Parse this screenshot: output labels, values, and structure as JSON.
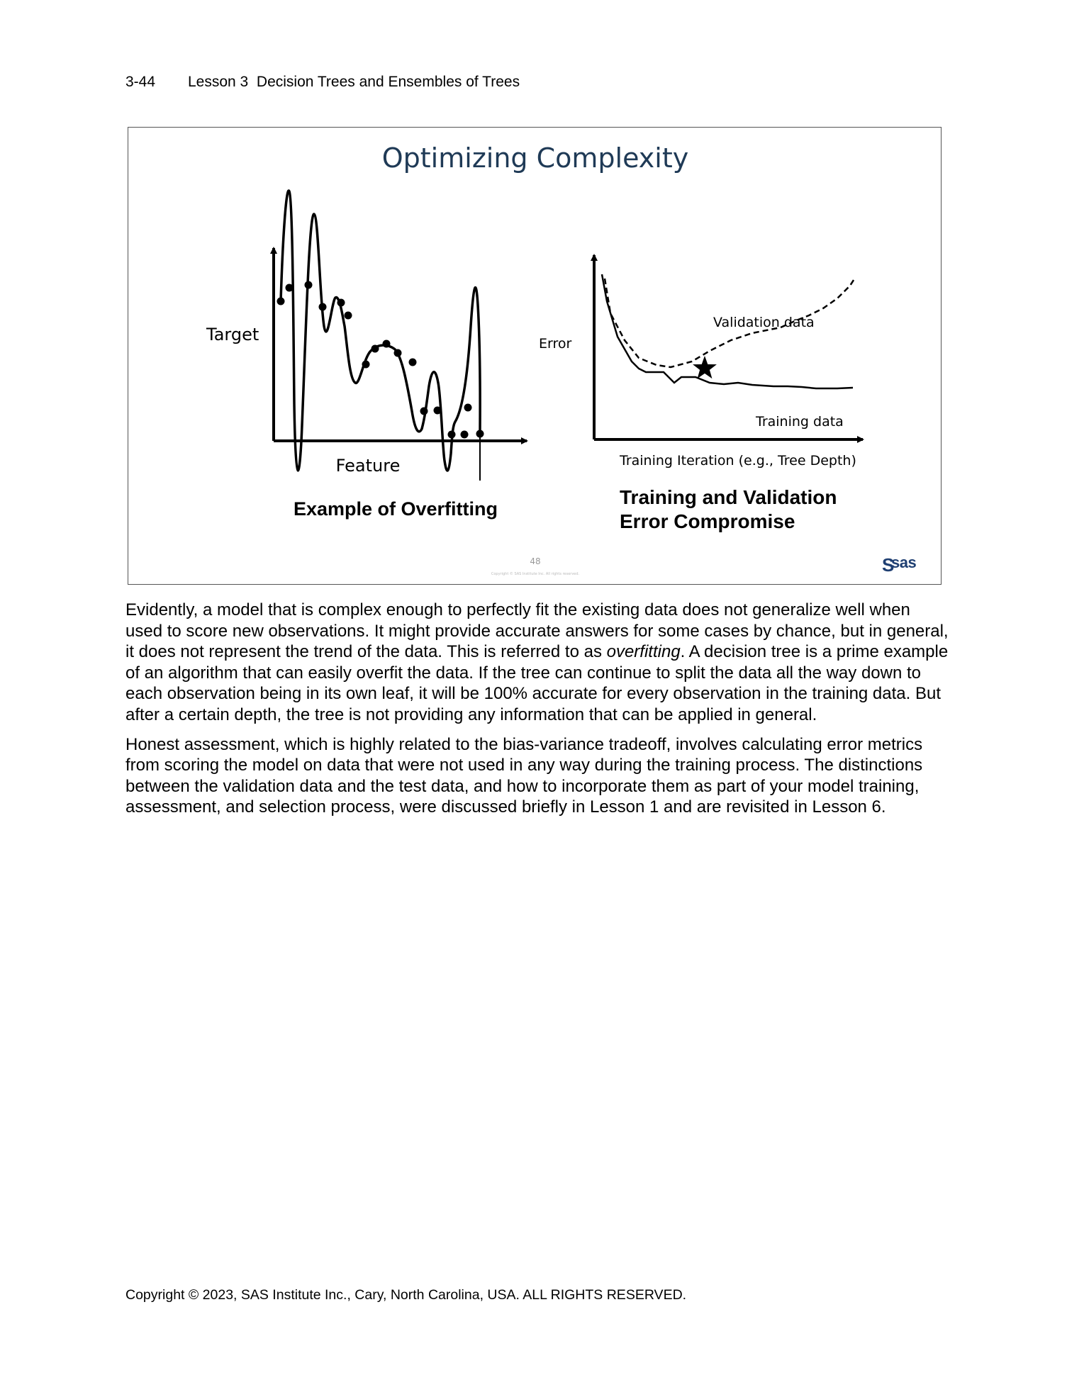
{
  "header": {
    "page_number": "3-44",
    "title": "Lesson 3  Decision Trees and Ensembles of Trees"
  },
  "slide": {
    "title": "Optimizing Complexity",
    "left_panel": {
      "y_label": "Target",
      "x_label": "Feature",
      "caption": "Example of Overfitting"
    },
    "right_panel": {
      "y_label": "Error",
      "x_label": "Training Iteration (e.g., Tree Depth)",
      "validation_label": "Validation data",
      "training_label": "Training data",
      "caption_line1": "Training and Validation",
      "caption_line2": "Error Compromise"
    },
    "slide_number": "48",
    "copyright_small": "Copyright © SAS Institute Inc. All rights reserved.",
    "logo_text": "sas"
  },
  "body": {
    "p1_before": "Evidently, a model that is complex enough to perfectly fit the existing data does not generalize well when used to score new observations. It might provide accurate answers for some cases by chance, but in general, it does not represent the trend of the data. This is referred to as ",
    "p1_italic": "overfitting",
    "p1_after": ". A decision tree is a prime example of an algorithm that can easily overfit the data. If the tree can continue to split the data all the way down to each observation being in its own leaf, it will be 100% accurate for every observation in the training data. But after a certain depth, the tree is not providing any information that can be applied in general.",
    "p2": "Honest assessment, which is highly related to the bias-variance tradeoff, involves calculating error metrics from scoring the model on data that were not used in any way during the training process. The distinctions between the validation data and the test data, and how to incorporate them as part of your model training, assessment, and selection process, were discussed briefly in Lesson 1 and are revisited in Lesson 6."
  },
  "footer": {
    "copyright": "Copyright © 2023, SAS Institute Inc., Cary, North Carolina, USA. ALL RIGHTS RESERVED."
  }
}
